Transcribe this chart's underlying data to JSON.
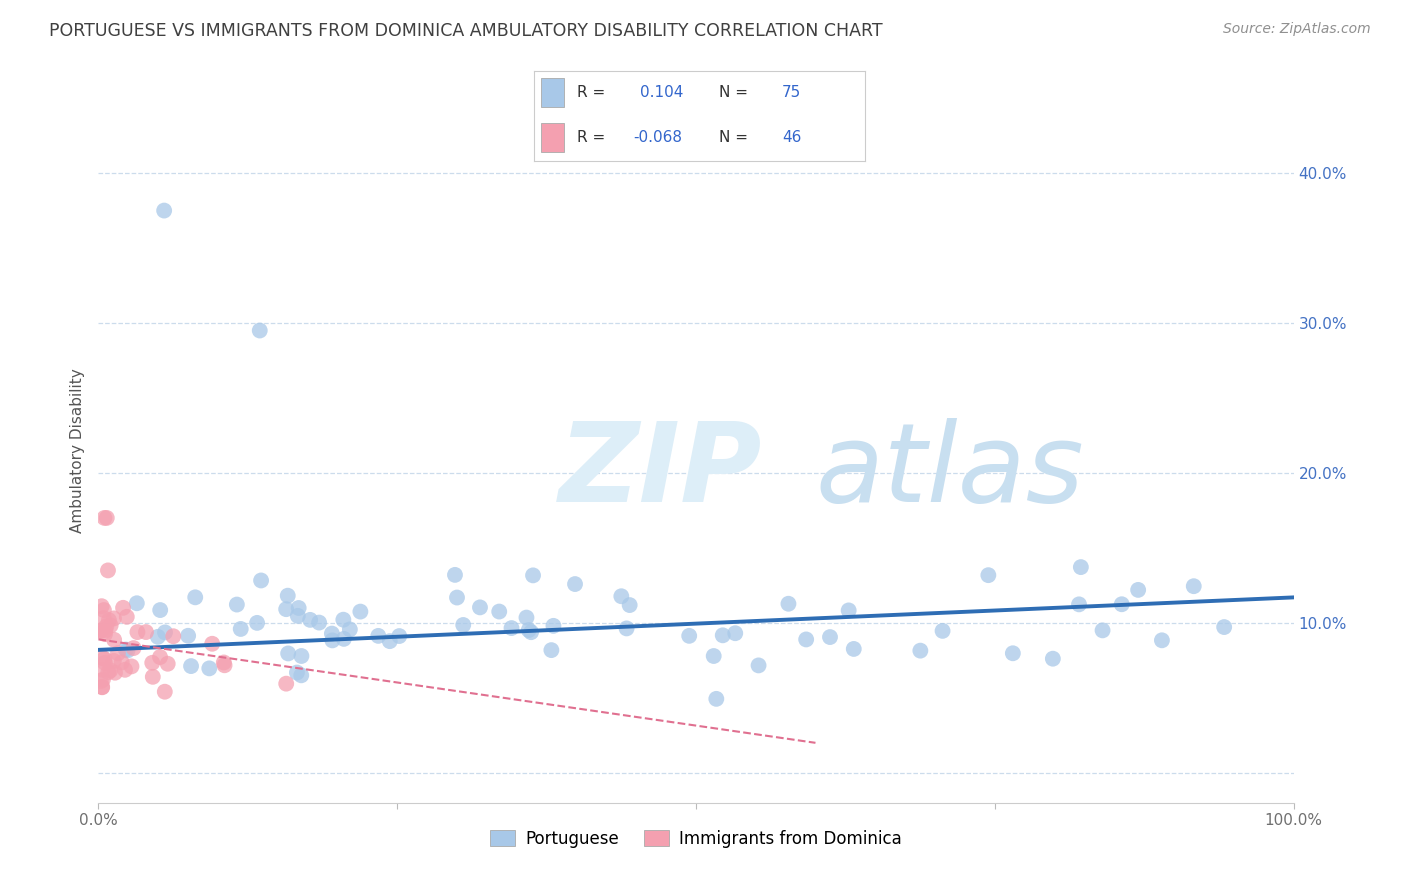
{
  "title": "PORTUGUESE VS IMMIGRANTS FROM DOMINICA AMBULATORY DISABILITY CORRELATION CHART",
  "source": "Source: ZipAtlas.com",
  "ylabel": "Ambulatory Disability",
  "legend_label_1": "Portuguese",
  "legend_label_2": "Immigrants from Dominica",
  "r1": 0.104,
  "n1": 75,
  "r2": -0.068,
  "n2": 46,
  "xlim": [
    0.0,
    1.0
  ],
  "ylim": [
    -0.02,
    0.45
  ],
  "xticks": [
    0.0,
    0.25,
    0.5,
    0.75,
    1.0
  ],
  "xticklabels": [
    "0.0%",
    "",
    "",
    "",
    "100.0%"
  ],
  "ytick_positions": [
    0.0,
    0.1,
    0.2,
    0.3,
    0.4
  ],
  "ytick_labels_right": [
    "",
    "10.0%",
    "20.0%",
    "30.0%",
    "40.0%"
  ],
  "color_blue": "#a8c8e8",
  "color_blue_line": "#2e6db4",
  "color_pink": "#f4a0b0",
  "color_pink_line": "#e07090",
  "color_title": "#404040",
  "color_source": "#909090",
  "background_color": "#ffffff",
  "watermark_color": "#ddeef8",
  "grid_color": "#c0d4e8",
  "grid_alpha": 0.8
}
